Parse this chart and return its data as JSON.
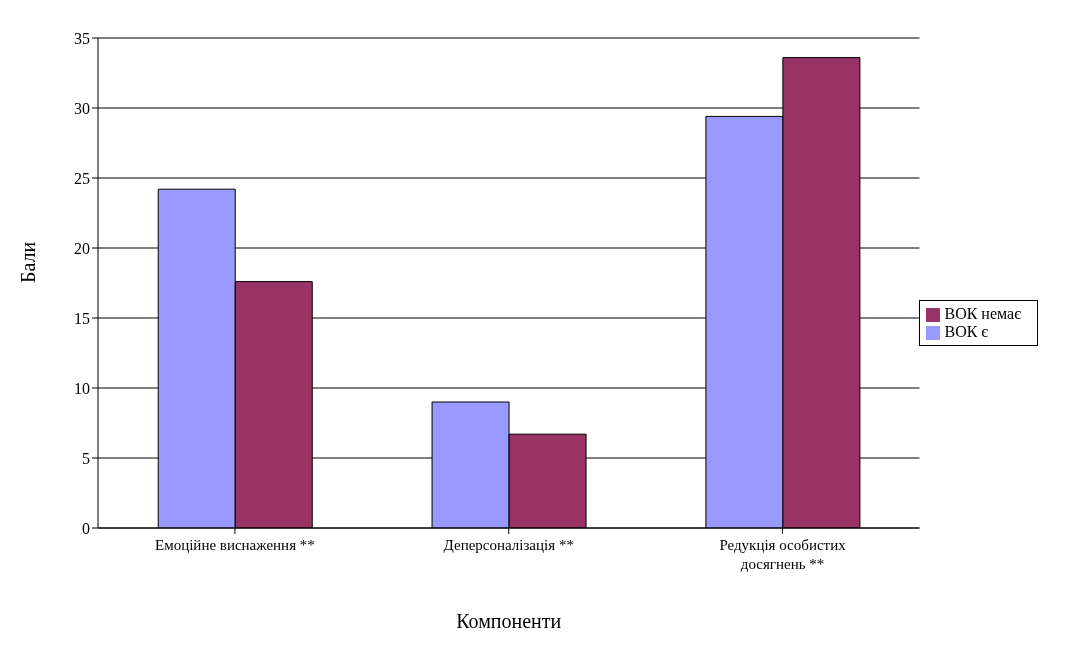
{
  "chart_data": {
    "type": "bar",
    "xlabel": "Компоненти",
    "ylabel": "Бали",
    "categories": [
      "Емоційне виснаження **",
      "Деперсоналізація **",
      "Редукція особистих досягнень **"
    ],
    "series": [
      {
        "name": "ВОК є",
        "color": "#9999ff",
        "values": [
          24.2,
          9.0,
          29.4
        ]
      },
      {
        "name": "ВОК немає",
        "color": "#993366",
        "values": [
          17.6,
          6.7,
          33.6
        ]
      }
    ],
    "ylim": [
      0,
      35
    ],
    "yticks": [
      0,
      5,
      10,
      15,
      20,
      25,
      30,
      35
    ],
    "grid": "y",
    "legend": "right"
  }
}
